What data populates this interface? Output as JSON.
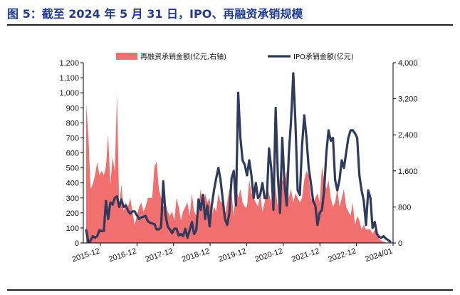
{
  "figure": {
    "title": "图 5：截至 2024 年 5 月 31 日，IPO、再融资承销规模"
  },
  "chart_data": {
    "type": "area+line",
    "x_tick_labels": [
      "2015-12",
      "2016-12",
      "2017-12",
      "2018-12",
      "2019-12",
      "2020-12",
      "2021-12",
      "2022-12",
      "2024/01"
    ],
    "y_left": {
      "ticks": [
        "0",
        "100",
        "200",
        "300",
        "400",
        "500",
        "600",
        "700",
        "800",
        "900",
        "1,000",
        "1,100",
        "1,200"
      ],
      "ylim": [
        0,
        1200
      ]
    },
    "y_right": {
      "ticks": [
        "0",
        "800",
        "1,600",
        "2,400",
        "3,200",
        "4,000"
      ],
      "ylim": [
        0,
        4000
      ]
    },
    "legend": {
      "placement": "top-center"
    },
    "series": [
      {
        "name": "IPO承销金额(亿元)",
        "kind": "line",
        "axis": "left",
        "color": "#2f3b5c",
        "values": [
          85,
          5,
          15,
          45,
          35,
          45,
          85,
          80,
          80,
          280,
          160,
          270,
          255,
          300,
          310,
          240,
          290,
          240,
          250,
          215,
          195,
          210,
          210,
          185,
          160,
          170,
          175,
          180,
          145,
          135,
          130,
          125,
          90,
          90,
          105,
          410,
          190,
          110,
          90,
          65,
          95,
          95,
          50,
          60,
          45,
          95,
          35,
          85,
          140,
          60,
          85,
          290,
          220,
          320,
          160,
          250,
          110,
          250,
          350,
          430,
          500,
          420,
          290,
          160,
          120,
          200,
          430,
          480,
          250,
          1000,
          700,
          550,
          520,
          450,
          550,
          450,
          300,
          400,
          300,
          320,
          400,
          300,
          300,
          630,
          500,
          220,
          900,
          450,
          200,
          700,
          400,
          250,
          600,
          820,
          1130,
          800,
          350,
          320,
          650,
          850,
          700,
          500,
          400,
          280,
          250,
          120,
          200,
          220,
          350,
          600,
          750,
          680,
          700,
          420,
          350,
          420,
          550,
          500,
          600,
          700,
          750,
          750,
          730,
          700,
          450,
          350,
          280,
          120,
          350,
          300,
          100,
          140,
          60,
          40,
          35,
          45,
          30,
          20,
          10
        ]
      },
      {
        "name": "再融资承销金额(亿元,右轴)",
        "kind": "area",
        "axis": "right",
        "color": "#f26f6f",
        "values": [
          3100,
          2400,
          1200,
          1300,
          1500,
          1800,
          1500,
          1600,
          1500,
          1700,
          2400,
          1300,
          1900,
          1600,
          3300,
          800,
          1300,
          700,
          900,
          800,
          1000,
          700,
          400,
          600,
          800,
          900,
          700,
          800,
          1000,
          1000,
          1000,
          1700,
          1800,
          1200,
          1000,
          800,
          900,
          700,
          600,
          700,
          500,
          1000,
          800,
          500,
          700,
          800,
          900,
          600,
          1100,
          700,
          600,
          800,
          1200,
          800,
          1100,
          900,
          1000,
          600,
          800,
          700,
          1100,
          900,
          900,
          600,
          900,
          1200,
          1100,
          600,
          1300,
          1000,
          1200,
          900,
          800,
          800,
          1400,
          1100,
          1000,
          900,
          800,
          1100,
          700,
          900,
          1300,
          1100,
          900,
          1600,
          1200,
          800,
          1600,
          1400,
          1300,
          1600,
          1000,
          1200,
          900,
          1100,
          1000,
          900,
          1000,
          1400,
          1600,
          1500,
          1000,
          900,
          1000,
          1100,
          900,
          1700,
          1400,
          1200,
          1400,
          1000,
          800,
          900,
          1200,
          800,
          1000,
          1200,
          800,
          700,
          600,
          900,
          400,
          600,
          500,
          300,
          400,
          300,
          300,
          300,
          200,
          300,
          200,
          100,
          50,
          30,
          10
        ]
      }
    ]
  }
}
